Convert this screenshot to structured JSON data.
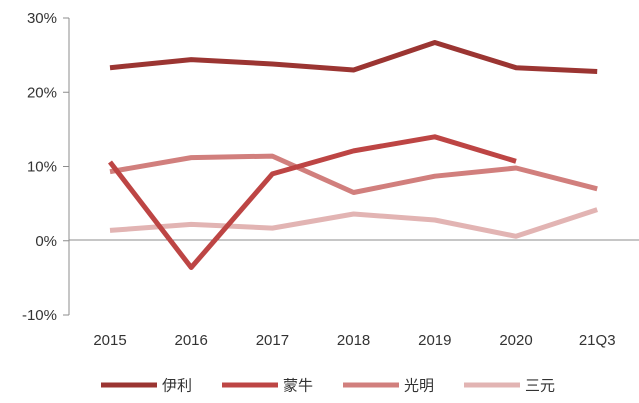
{
  "chart_data": {
    "type": "line",
    "title": "",
    "xlabel": "",
    "ylabel": "",
    "categories": [
      "2015",
      "2016",
      "2017",
      "2018",
      "2019",
      "2020",
      "21Q3"
    ],
    "y_ticks": [
      "30%",
      "20%",
      "10%",
      "0%",
      "-10%"
    ],
    "ylim": [
      -10,
      30
    ],
    "y_unit": "%",
    "grid": false,
    "legend_position": "bottom",
    "series": [
      {
        "name": "伊利",
        "color": "#9B3532",
        "values": [
          23.3,
          24.4,
          23.8,
          23.0,
          26.7,
          23.3,
          22.8
        ]
      },
      {
        "name": "蒙牛",
        "color": "#BD4544",
        "values": [
          10.6,
          -3.6,
          9.0,
          12.1,
          14.0,
          10.7,
          null
        ]
      },
      {
        "name": "光明",
        "color": "#D17F7D",
        "values": [
          9.3,
          11.2,
          11.4,
          6.5,
          8.7,
          9.8,
          7.0
        ]
      },
      {
        "name": "三元",
        "color": "#E2B4B3",
        "values": [
          1.4,
          2.2,
          1.7,
          3.6,
          2.8,
          0.6,
          4.2
        ]
      }
    ]
  }
}
